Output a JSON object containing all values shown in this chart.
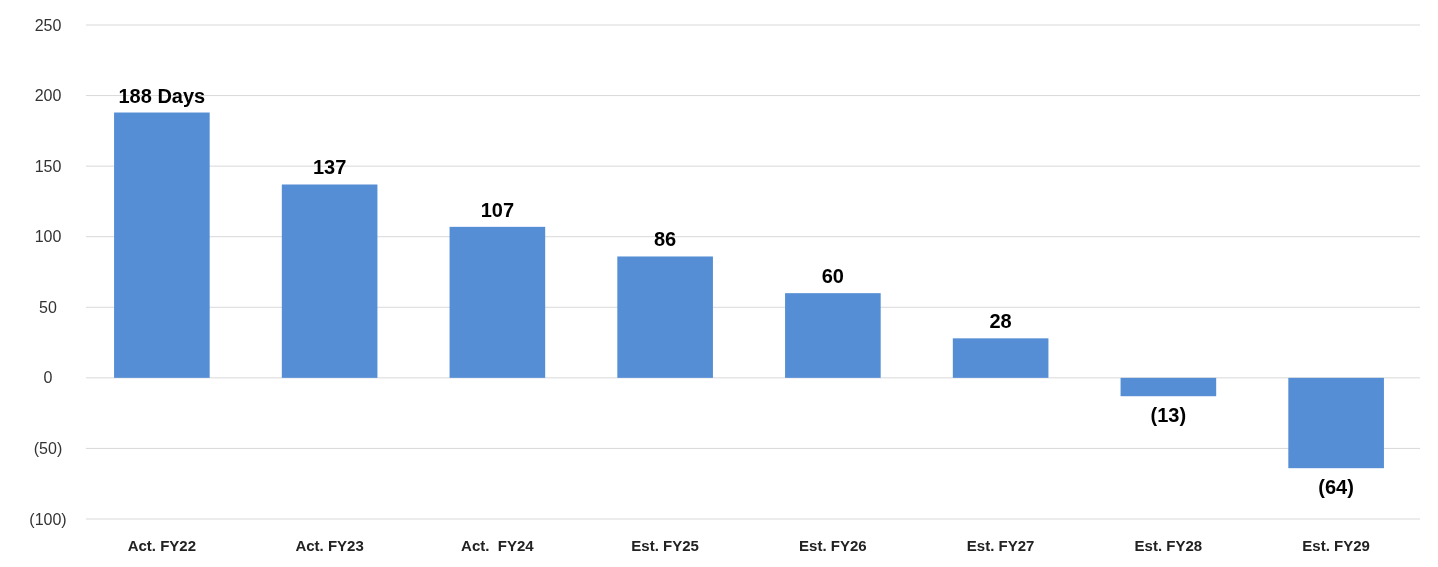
{
  "chart_data": {
    "type": "bar",
    "categories": [
      "Act. FY22",
      "Act. FY23",
      "Act.  FY24",
      "Est. FY25",
      "Est. FY26",
      "Est. FY27",
      "Est. FY28",
      "Est. FY29"
    ],
    "values": [
      188,
      137,
      107,
      86,
      60,
      28,
      -13,
      -64
    ],
    "value_labels": [
      "188 Days",
      "137",
      "107",
      "86",
      "60",
      "28",
      "(13)",
      "(64)"
    ],
    "color": "#558ed5",
    "ylim": [
      -100,
      250
    ],
    "yticks": [
      {
        "value": -100,
        "label": "(100)"
      },
      {
        "value": -50,
        "label": "(50)"
      },
      0,
      50,
      100,
      150,
      200,
      250
    ],
    "grid": "y"
  }
}
